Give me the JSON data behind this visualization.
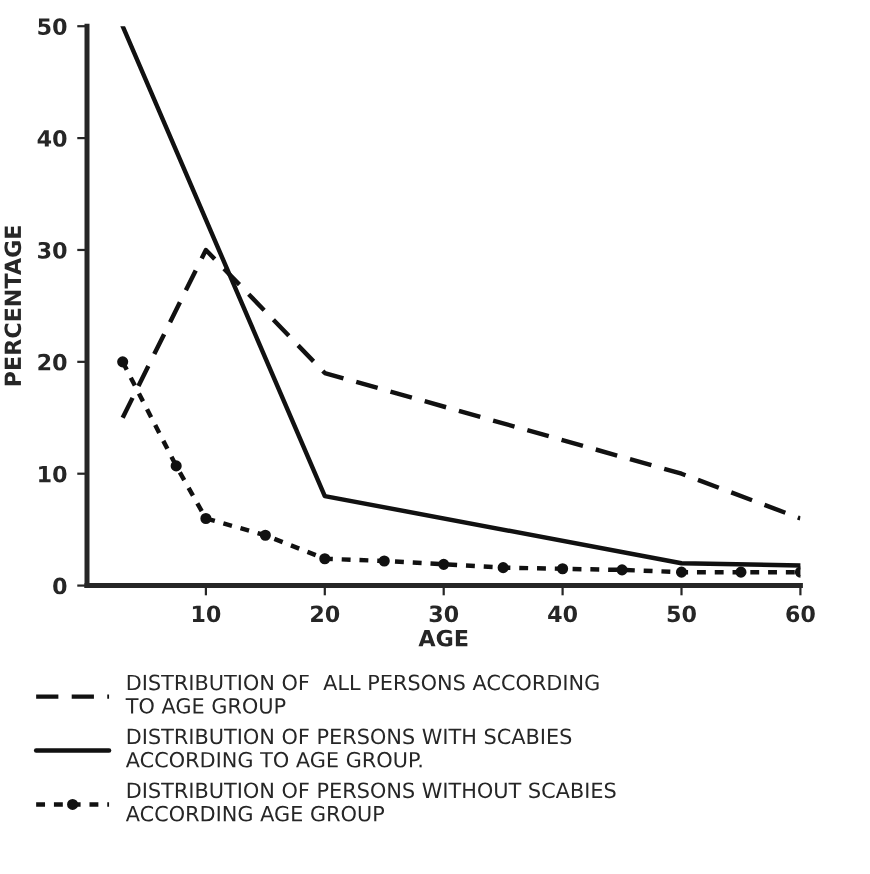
{
  "chart_data": {
    "type": "line",
    "xlabel": "AGE",
    "ylabel": "PERCENTAGE",
    "xlim": [
      0,
      60
    ],
    "xticks": [
      10,
      20,
      30,
      40,
      50,
      60
    ],
    "ylim": [
      0,
      50
    ],
    "yticks": [
      0,
      10,
      20,
      30,
      40,
      50
    ],
    "grid": false,
    "legend": "bottom",
    "series": [
      {
        "name": "DISTRIBUTION OF  ALL PERSONS ACCORDING\nTO AGE GROUP",
        "color": "#111111",
        "line_style": "dashed",
        "marker": "none",
        "x": [
          3,
          10,
          20,
          50,
          60
        ],
        "values": [
          15,
          30,
          19,
          10,
          6
        ]
      },
      {
        "name": "DISTRIBUTION OF PERSONS WITH SCABIES\nACCORDING TO AGE GROUP.",
        "color": "#111111",
        "line_style": "solid",
        "marker": "none",
        "x": [
          3,
          20,
          50,
          60
        ],
        "values": [
          50,
          8,
          2,
          1.8
        ]
      },
      {
        "name": "DISTRIBUTION OF PERSONS WITHOUT SCABIES\nACCORDING AGE GROUP",
        "color": "#111111",
        "line_style": "dotted",
        "marker": "circle",
        "x": [
          3,
          7.5,
          10,
          15,
          20,
          25,
          30,
          35,
          40,
          45,
          50,
          55,
          60
        ],
        "values": [
          20,
          10.7,
          6,
          4.5,
          2.4,
          2.2,
          1.9,
          1.6,
          1.5,
          1.4,
          1.2,
          1.2,
          1.2
        ]
      }
    ]
  }
}
